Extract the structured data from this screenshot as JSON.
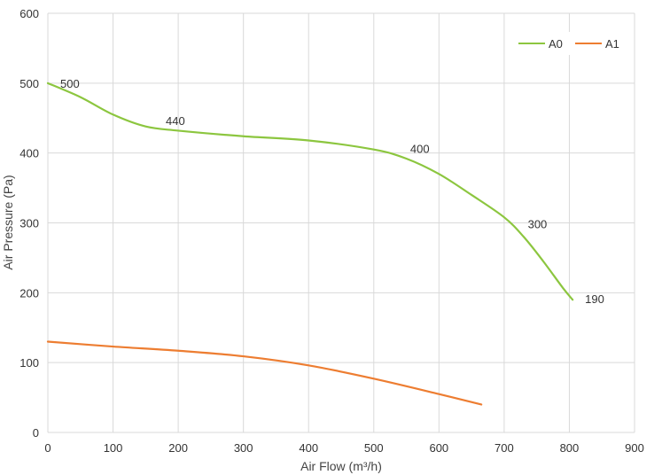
{
  "chart_data": {
    "type": "line",
    "xlabel": "Air Flow  (m³/h)",
    "ylabel": "Air Pressure  (Pa)",
    "xlim": [
      0,
      900
    ],
    "ylim": [
      0,
      600
    ],
    "x_ticks": [
      0,
      100,
      200,
      300,
      400,
      500,
      600,
      700,
      800,
      900
    ],
    "y_ticks": [
      0,
      100,
      200,
      300,
      400,
      500,
      600
    ],
    "grid": true,
    "legend": "top-right",
    "series": [
      {
        "name": "A0",
        "color": "#8cc63f",
        "points": [
          [
            0,
            500
          ],
          [
            50,
            480
          ],
          [
            100,
            455
          ],
          [
            150,
            438
          ],
          [
            200,
            432
          ],
          [
            300,
            424
          ],
          [
            400,
            418
          ],
          [
            500,
            405
          ],
          [
            550,
            392
          ],
          [
            600,
            370
          ],
          [
            650,
            340
          ],
          [
            700,
            308
          ],
          [
            730,
            280
          ],
          [
            760,
            245
          ],
          [
            790,
            207
          ],
          [
            805,
            190
          ]
        ]
      },
      {
        "name": "A1",
        "color": "#ed7d31",
        "points": [
          [
            0,
            130
          ],
          [
            100,
            123
          ],
          [
            200,
            117
          ],
          [
            300,
            109
          ],
          [
            400,
            96
          ],
          [
            500,
            77
          ],
          [
            600,
            55
          ],
          [
            665,
            40
          ]
        ]
      }
    ],
    "data_labels": [
      {
        "text": "500",
        "x": 0,
        "y": 500
      },
      {
        "text": "440",
        "x": 170,
        "y": 440
      },
      {
        "text": "400",
        "x": 545,
        "y": 400
      },
      {
        "text": "300",
        "x": 720,
        "y": 300
      },
      {
        "text": "190",
        "x": 805,
        "y": 190
      }
    ]
  }
}
